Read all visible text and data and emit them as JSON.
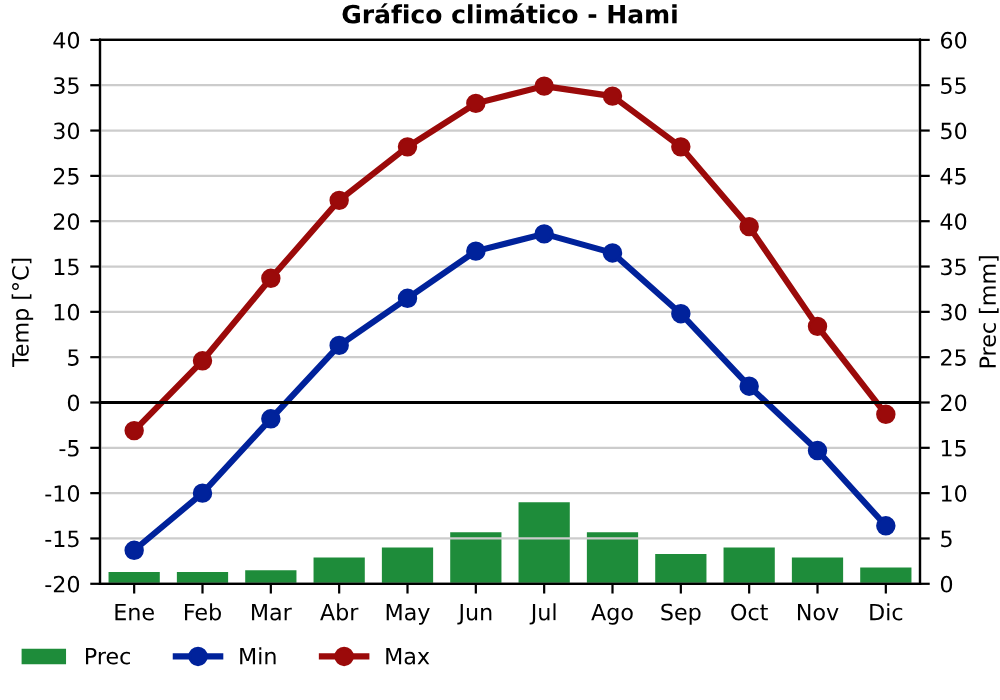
{
  "chart_data": {
    "type": "line",
    "title": "Gráfico climático - Hami",
    "ylabel": "Temp [°C]",
    "y2label": "Prec [mm]",
    "categories": [
      "Ene",
      "Feb",
      "Mar",
      "Abr",
      "May",
      "Jun",
      "Jul",
      "Ago",
      "Sep",
      "Oct",
      "Nov",
      "Dic"
    ],
    "series": [
      {
        "name": "Prec",
        "type": "bar",
        "axis": "y2",
        "color": "#1e8c3a",
        "values": [
          1.3,
          1.3,
          1.5,
          2.9,
          4,
          5.7,
          9,
          5.7,
          3.3,
          4,
          2.9,
          1.8
        ]
      },
      {
        "name": "Min",
        "color": "#00229b",
        "values": [
          -16.3,
          -10,
          -1.8,
          6.3,
          11.5,
          16.7,
          18.6,
          16.5,
          9.8,
          1.8,
          -5.3,
          -13.6
        ]
      },
      {
        "name": "Max",
        "color": "#9b0a0a",
        "values": [
          -3.1,
          4.6,
          13.7,
          22.3,
          28.2,
          33,
          34.9,
          33.8,
          28.2,
          19.4,
          8.4,
          -1.3
        ]
      }
    ],
    "ylim": [
      -20,
      40
    ],
    "yticks": [
      -20,
      -15,
      -10,
      -5,
      0,
      5,
      10,
      15,
      20,
      25,
      30,
      35,
      40
    ],
    "y2lim": [
      0,
      60
    ],
    "y2ticks": [
      0,
      5,
      10,
      15,
      20,
      25,
      30,
      35,
      40,
      45,
      50,
      55,
      60
    ],
    "ref_lines": [
      {
        "axis": "y",
        "value": 0,
        "color": "#000000"
      }
    ],
    "grid": "y",
    "legend": "bottom",
    "marker": "circle",
    "line_style": "solid"
  }
}
